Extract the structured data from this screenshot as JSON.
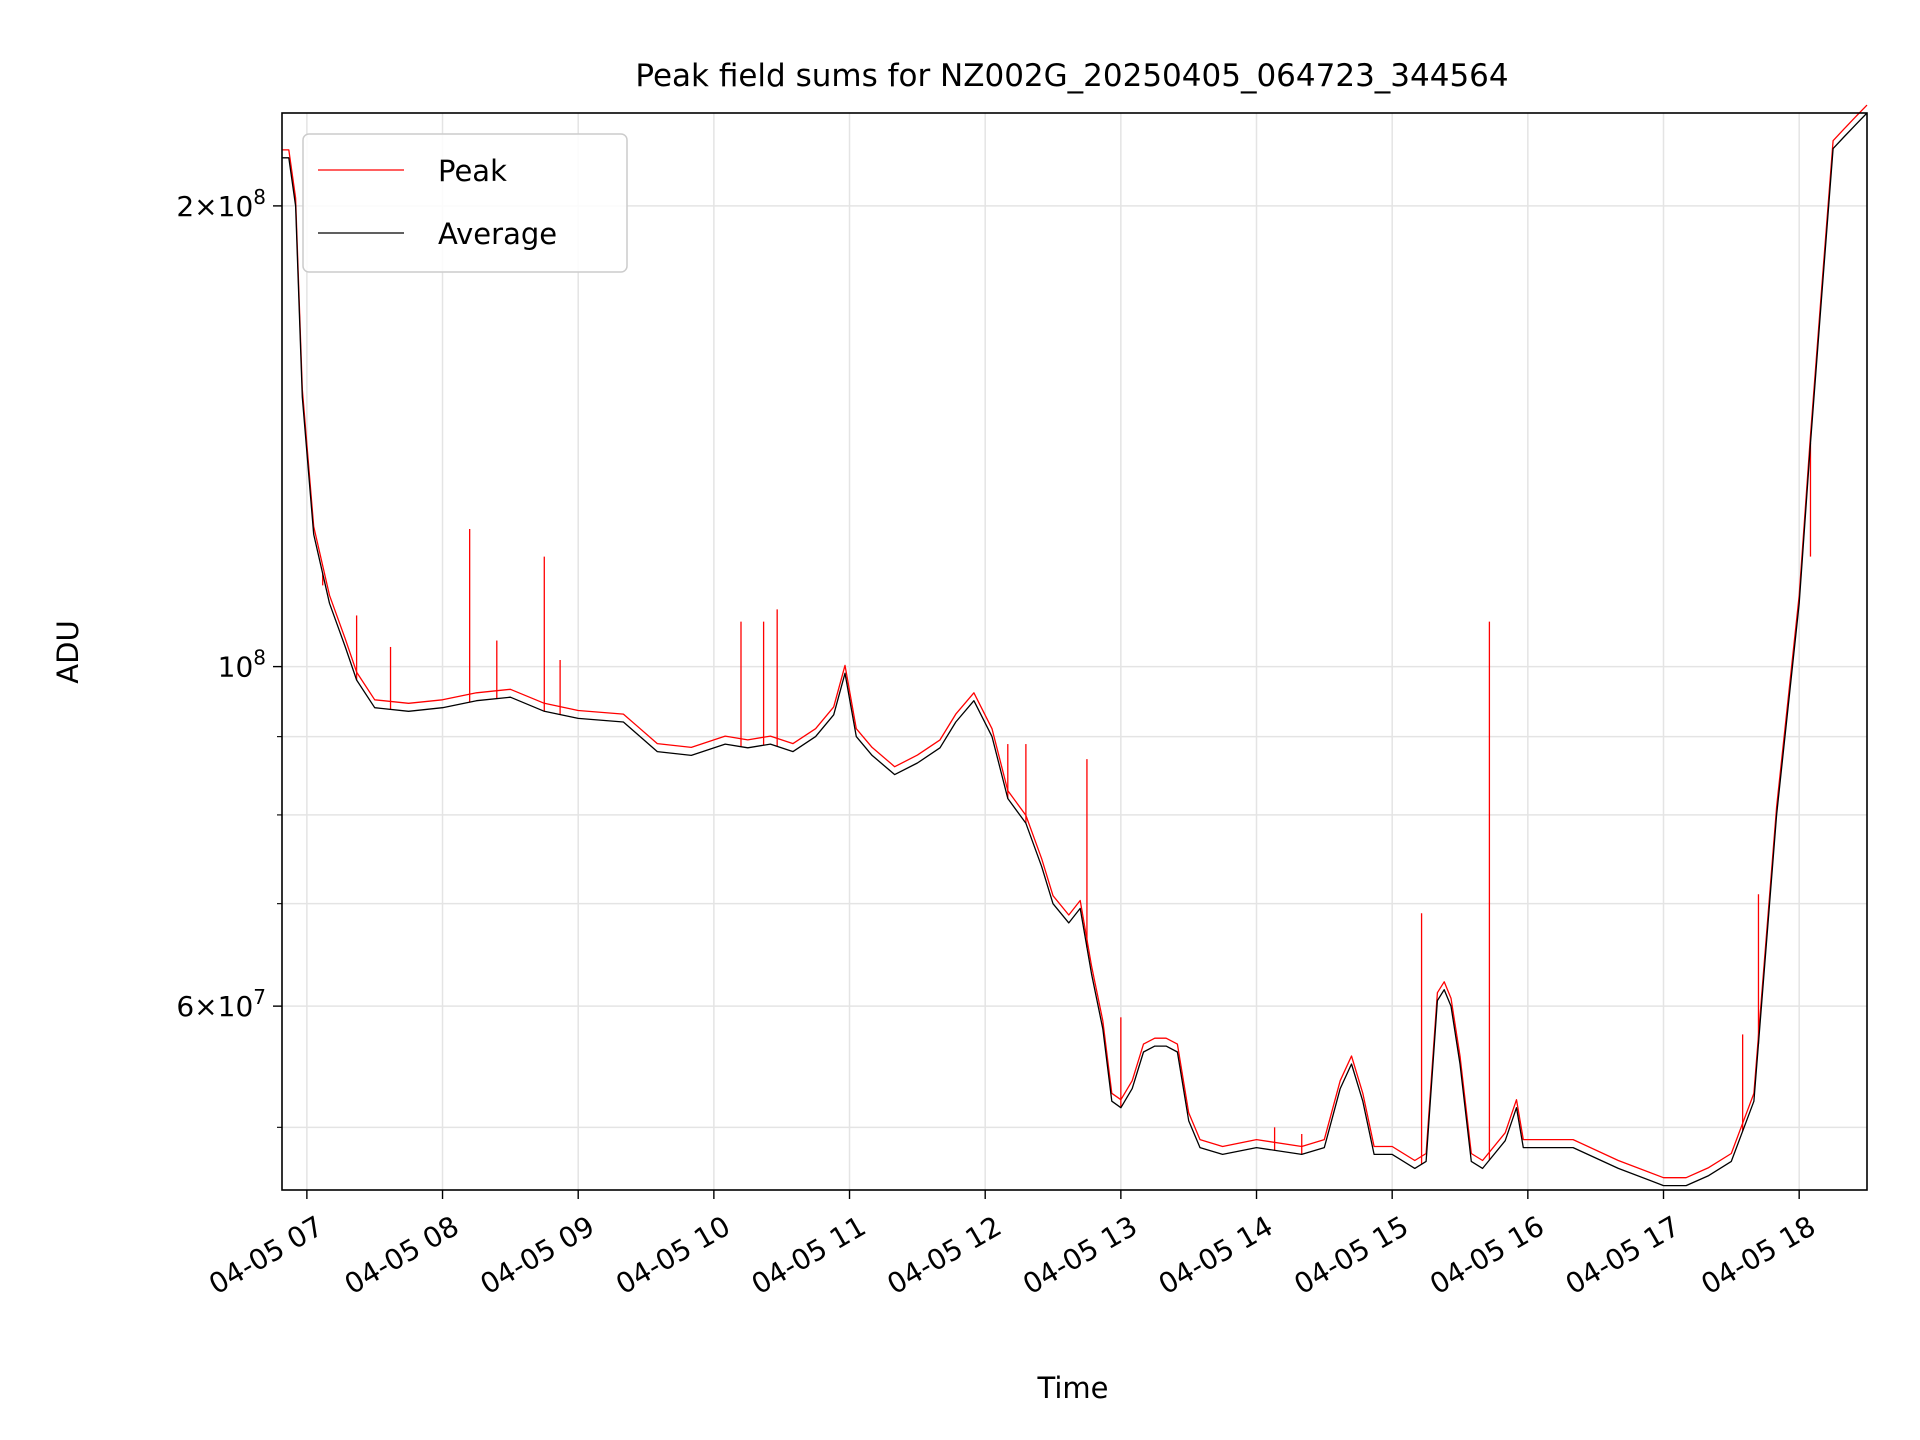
{
  "chart_data": {
    "type": "line",
    "title": "Peak field sums for NZ002G_20250405_064723_344564",
    "xlabel": "Time",
    "ylabel": "ADU",
    "yscale": "log",
    "grid": true,
    "legend_position": "top-left",
    "xlim": [
      "2025-04-05 06:49",
      "2025-04-05 18:30"
    ],
    "ylim": [
      45500000,
      230000000
    ],
    "x_ticks": [
      {
        "t": "2025-04-05 07:00",
        "label": "04-05 07"
      },
      {
        "t": "2025-04-05 08:00",
        "label": "04-05 08"
      },
      {
        "t": "2025-04-05 09:00",
        "label": "04-05 09"
      },
      {
        "t": "2025-04-05 10:00",
        "label": "04-05 10"
      },
      {
        "t": "2025-04-05 11:00",
        "label": "04-05 11"
      },
      {
        "t": "2025-04-05 12:00",
        "label": "04-05 12"
      },
      {
        "t": "2025-04-05 13:00",
        "label": "04-05 13"
      },
      {
        "t": "2025-04-05 14:00",
        "label": "04-05 14"
      },
      {
        "t": "2025-04-05 15:00",
        "label": "04-05 15"
      },
      {
        "t": "2025-04-05 16:00",
        "label": "04-05 16"
      },
      {
        "t": "2025-04-05 17:00",
        "label": "04-05 17"
      },
      {
        "t": "2025-04-05 18:00",
        "label": "04-05 18"
      }
    ],
    "y_major_ticks": [
      {
        "value": 60000000,
        "base": "6",
        "exp": "7"
      },
      {
        "value": 100000000,
        "base": "",
        "exp": "8"
      },
      {
        "value": 200000000,
        "base": "2",
        "exp": "8"
      }
    ],
    "y_minor_ticks": [
      50000000,
      70000000,
      80000000,
      90000000
    ],
    "series": [
      {
        "name": "Average",
        "color": "#000000",
        "x": [
          "2025-04-05 06:49",
          "2025-04-05 06:52",
          "2025-04-05 06:55",
          "2025-04-05 06:58",
          "2025-04-05 07:03",
          "2025-04-05 07:10",
          "2025-04-05 07:17",
          "2025-04-05 07:22",
          "2025-04-05 07:30",
          "2025-04-05 07:45",
          "2025-04-05 08:00",
          "2025-04-05 08:15",
          "2025-04-05 08:30",
          "2025-04-05 08:45",
          "2025-04-05 09:00",
          "2025-04-05 09:20",
          "2025-04-05 09:35",
          "2025-04-05 09:50",
          "2025-04-05 10:05",
          "2025-04-05 10:15",
          "2025-04-05 10:25",
          "2025-04-05 10:35",
          "2025-04-05 10:45",
          "2025-04-05 10:53",
          "2025-04-05 10:58",
          "2025-04-05 11:03",
          "2025-04-05 11:10",
          "2025-04-05 11:20",
          "2025-04-05 11:30",
          "2025-04-05 11:40",
          "2025-04-05 11:47",
          "2025-04-05 11:55",
          "2025-04-05 12:03",
          "2025-04-05 12:10",
          "2025-04-05 12:18",
          "2025-04-05 12:25",
          "2025-04-05 12:30",
          "2025-04-05 12:37",
          "2025-04-05 12:42",
          "2025-04-05 12:47",
          "2025-04-05 12:52",
          "2025-04-05 12:56",
          "2025-04-05 13:00",
          "2025-04-05 13:05",
          "2025-04-05 13:10",
          "2025-04-05 13:15",
          "2025-04-05 13:20",
          "2025-04-05 13:25",
          "2025-04-05 13:30",
          "2025-04-05 13:35",
          "2025-04-05 13:45",
          "2025-04-05 14:00",
          "2025-04-05 14:20",
          "2025-04-05 14:30",
          "2025-04-05 14:37",
          "2025-04-05 14:42",
          "2025-04-05 14:47",
          "2025-04-05 14:52",
          "2025-04-05 15:00",
          "2025-04-05 15:10",
          "2025-04-05 15:15",
          "2025-04-05 15:20",
          "2025-04-05 15:23",
          "2025-04-05 15:26",
          "2025-04-05 15:30",
          "2025-04-05 15:35",
          "2025-04-05 15:40",
          "2025-04-05 15:50",
          "2025-04-05 15:55",
          "2025-04-05 15:58",
          "2025-04-05 16:02",
          "2025-04-05 16:10",
          "2025-04-05 16:20",
          "2025-04-05 16:40",
          "2025-04-05 17:00",
          "2025-04-05 17:10",
          "2025-04-05 17:20",
          "2025-04-05 17:30",
          "2025-04-05 17:40",
          "2025-04-05 17:50",
          "2025-04-05 18:00",
          "2025-04-05 18:05",
          "2025-04-05 18:10",
          "2025-04-05 18:15",
          "2025-04-05 18:20",
          "2025-04-05 18:25",
          "2025-04-05 18:30"
        ],
        "y": [
          215000000,
          215000000,
          200000000,
          150000000,
          122000000,
          110000000,
          103000000,
          98000000,
          94000000,
          93500000,
          94000000,
          95000000,
          95500000,
          93500000,
          92500000,
          92000000,
          88000000,
          87500000,
          89000000,
          88500000,
          89000000,
          88000000,
          90000000,
          93000000,
          99000000,
          90000000,
          87500000,
          85000000,
          86500000,
          88500000,
          92000000,
          95000000,
          90000000,
          82000000,
          79000000,
          74000000,
          70000000,
          68000000,
          69500000,
          63000000,
          58000000,
          52000000,
          51500000,
          53000000,
          56000000,
          56500000,
          56500000,
          56000000,
          50500000,
          48500000,
          48000000,
          48500000,
          48000000,
          48500000,
          53000000,
          55000000,
          52000000,
          48000000,
          48000000,
          47000000,
          47500000,
          60500000,
          61500000,
          60000000,
          55000000,
          47500000,
          47000000,
          49000000,
          51500000,
          48500000,
          48500000,
          48500000,
          48500000,
          47000000,
          45800000,
          45800000,
          46500000,
          47500000,
          52000000,
          80000000,
          110000000,
          140000000,
          175000000,
          218000000,
          222000000,
          226000000,
          230000000
        ]
      },
      {
        "name": "Peak",
        "color": "#ff0000",
        "spikes": [
          {
            "x": "2025-04-05 07:07",
            "y": 113000000
          },
          {
            "x": "2025-04-05 07:22",
            "y": 108000000
          },
          {
            "x": "2025-04-05 07:37",
            "y": 103000000
          },
          {
            "x": "2025-04-05 08:12",
            "y": 123000000
          },
          {
            "x": "2025-04-05 08:24",
            "y": 104000000
          },
          {
            "x": "2025-04-05 08:45",
            "y": 118000000
          },
          {
            "x": "2025-04-05 08:52",
            "y": 101000000
          },
          {
            "x": "2025-04-05 10:12",
            "y": 107000000
          },
          {
            "x": "2025-04-05 10:22",
            "y": 107000000
          },
          {
            "x": "2025-04-05 10:28",
            "y": 109000000
          },
          {
            "x": "2025-04-05 12:10",
            "y": 89000000
          },
          {
            "x": "2025-04-05 12:18",
            "y": 89000000
          },
          {
            "x": "2025-04-05 12:45",
            "y": 87000000
          },
          {
            "x": "2025-04-05 13:00",
            "y": 59000000
          },
          {
            "x": "2025-04-05 14:08",
            "y": 50000000
          },
          {
            "x": "2025-04-05 14:20",
            "y": 49500000
          },
          {
            "x": "2025-04-05 15:13",
            "y": 69000000
          },
          {
            "x": "2025-04-05 15:43",
            "y": 107000000
          },
          {
            "x": "2025-04-05 17:35",
            "y": 57500000
          },
          {
            "x": "2025-04-05 17:42",
            "y": 71000000
          },
          {
            "x": "2025-04-05 18:05",
            "y": 118000000
          }
        ]
      }
    ]
  }
}
